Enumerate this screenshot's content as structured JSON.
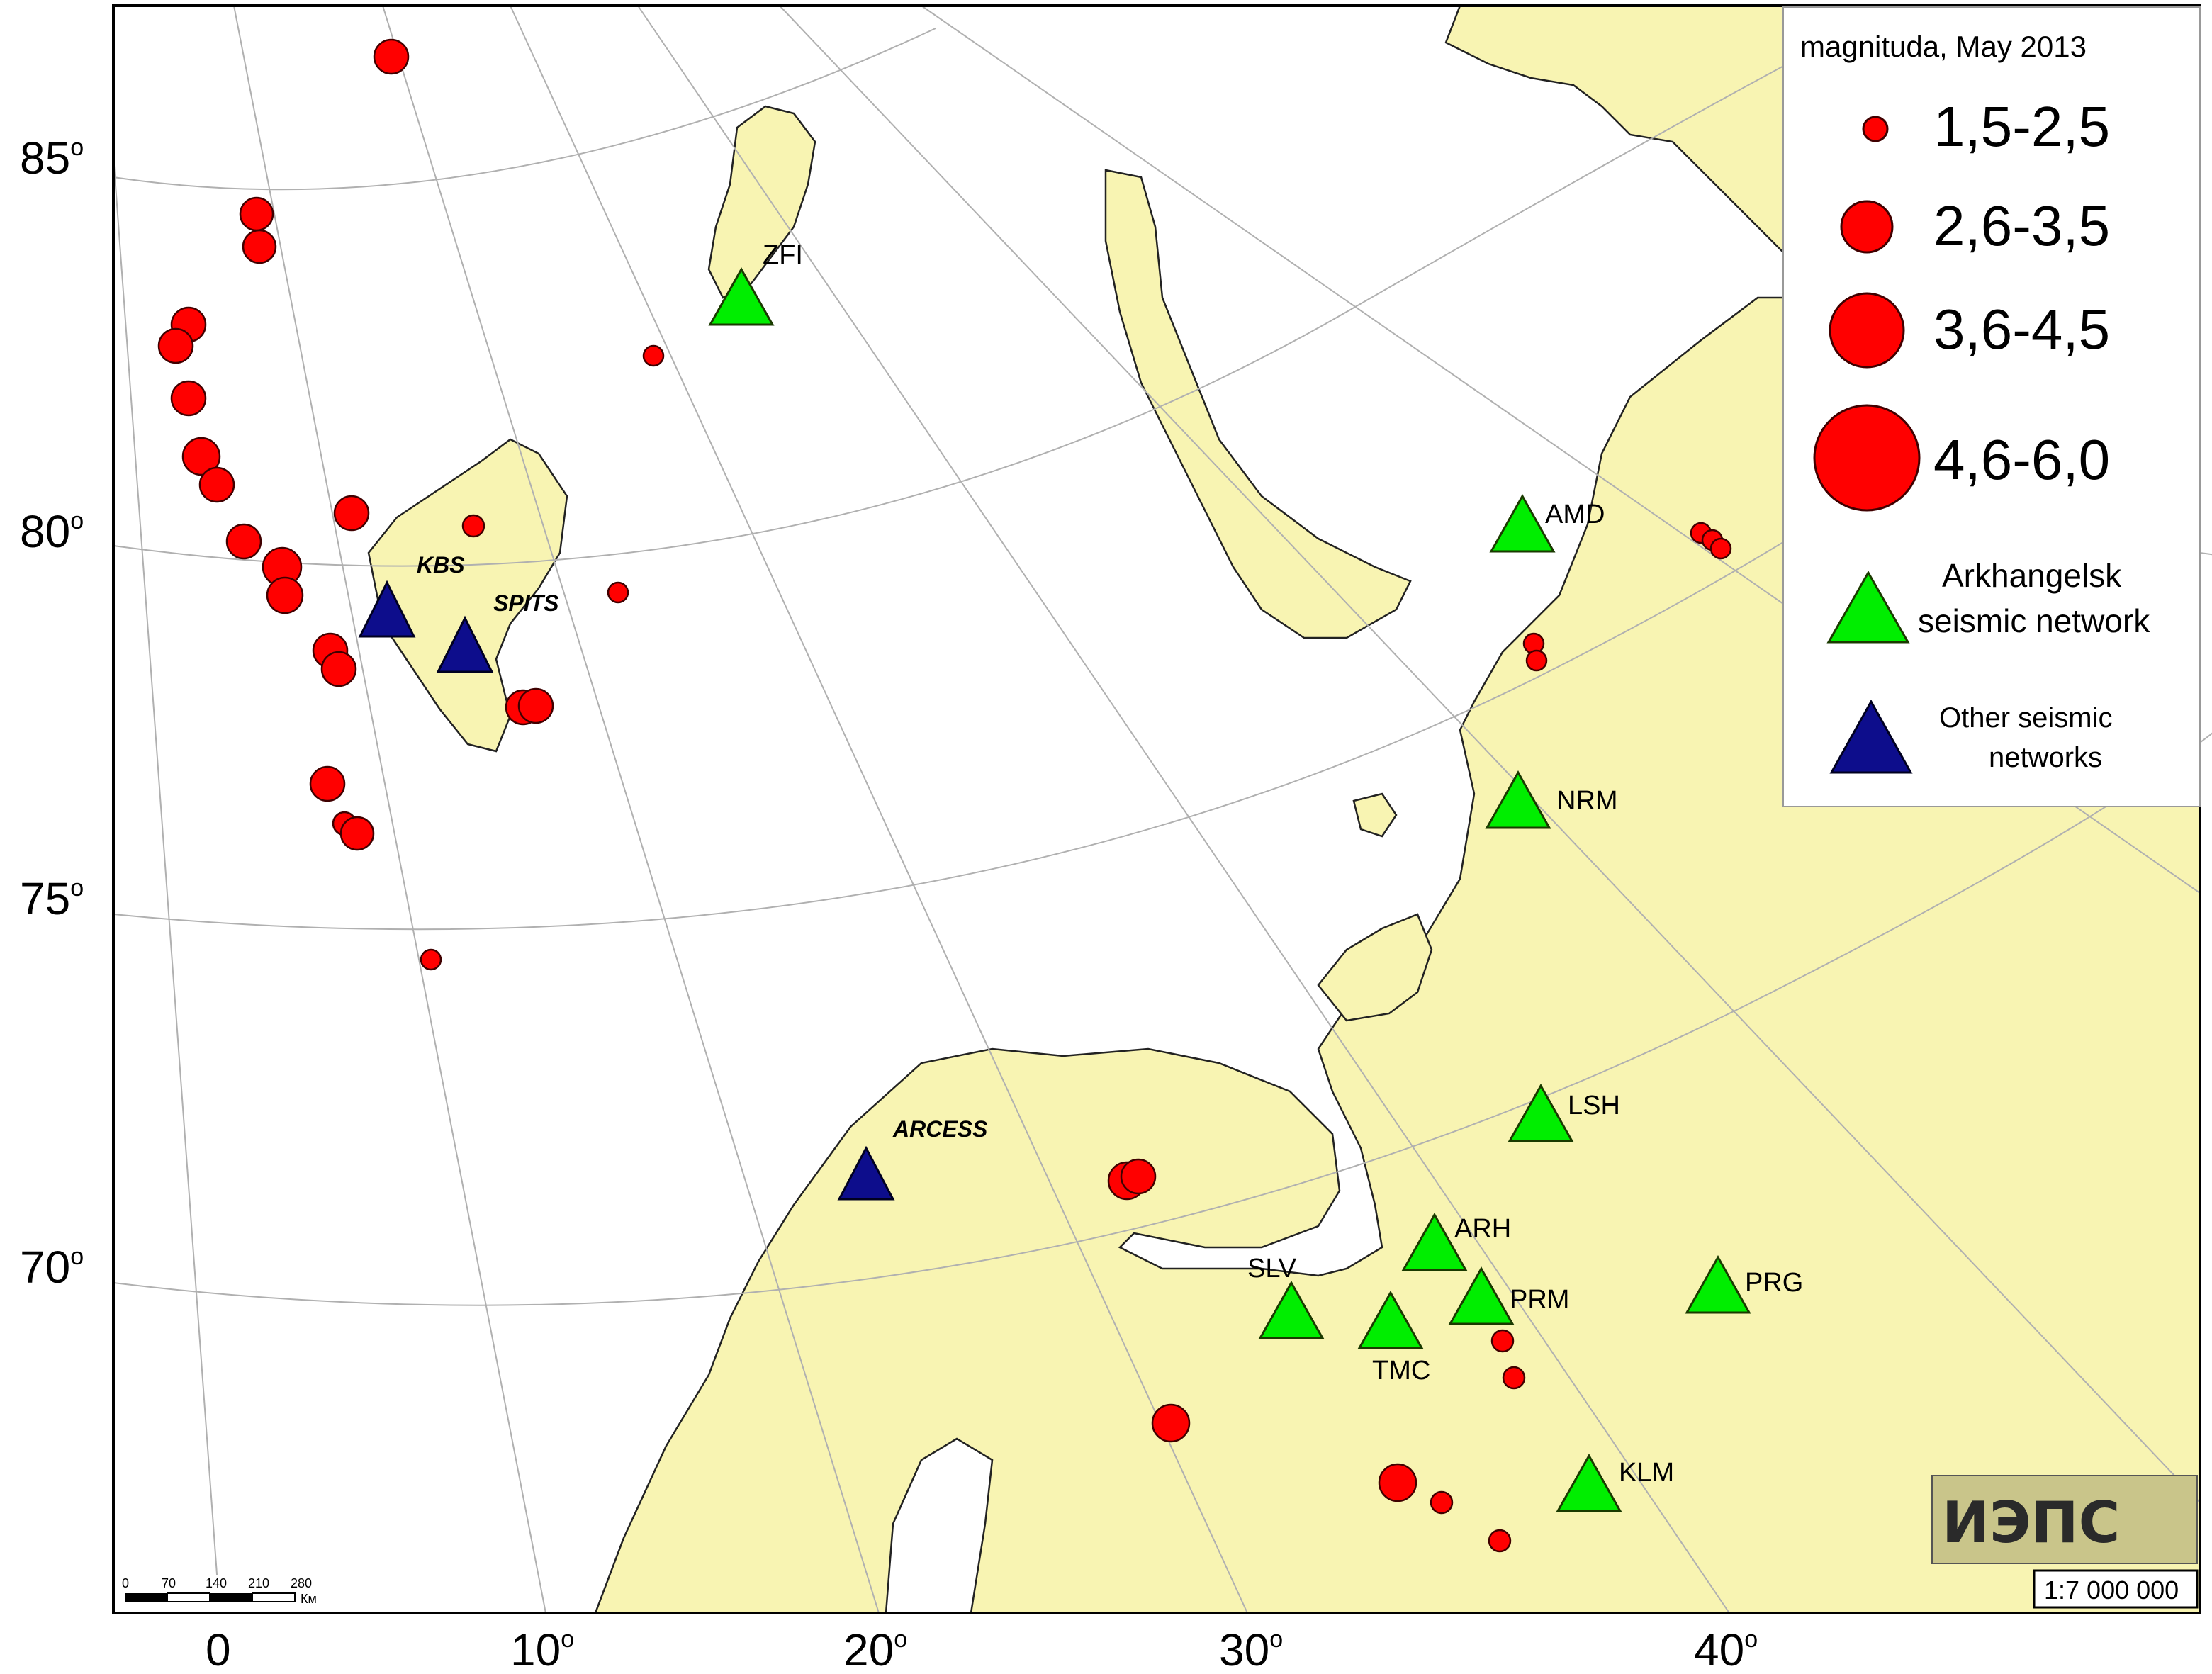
{
  "legend": {
    "title": "magnituda, May 2013",
    "mag_classes": [
      {
        "label": "1,5-2,5"
      },
      {
        "label": "2,6-3,5"
      },
      {
        "label": "3,6-4,5"
      },
      {
        "label": "4,6-6,0"
      }
    ],
    "arkh_line1": "Arkhangelsk",
    "arkh_line2": "seismic network",
    "other_line1": "Other seismic",
    "other_line2": "networks"
  },
  "lat_labels": [
    {
      "value": "85",
      "deg": "o"
    },
    {
      "value": "80",
      "deg": "o"
    },
    {
      "value": "75",
      "deg": "o"
    },
    {
      "value": "70",
      "deg": "o"
    }
  ],
  "lon_labels": [
    {
      "value": "0",
      "deg": ""
    },
    {
      "value": "10",
      "deg": "o"
    },
    {
      "value": "20",
      "deg": "o"
    },
    {
      "value": "30",
      "deg": "o"
    },
    {
      "value": "40",
      "deg": "o"
    }
  ],
  "stations_arkh": [
    {
      "name": "ZFI"
    },
    {
      "name": "AMD"
    },
    {
      "name": "NRM"
    },
    {
      "name": "LSH"
    },
    {
      "name": "ARH"
    },
    {
      "name": "SLV"
    },
    {
      "name": "PRM"
    },
    {
      "name": "TMC"
    },
    {
      "name": "PRG"
    },
    {
      "name": "KLM"
    }
  ],
  "stations_other": [
    {
      "name": "KBS"
    },
    {
      "name": "SPITS"
    },
    {
      "name": "ARCESS"
    }
  ],
  "scale_bar": {
    "ticks": [
      "0",
      "70",
      "140",
      "210",
      "280"
    ],
    "unit": "Км"
  },
  "scale_ratio": "1:7 000 000",
  "logo_text": "ИЭПС",
  "colors": {
    "land": "#f8f4b2",
    "sea": "#ffffff",
    "event": "#ff0000",
    "arkhangelsk_station": "#00ff00",
    "other_station": "#0d0d8c"
  }
}
